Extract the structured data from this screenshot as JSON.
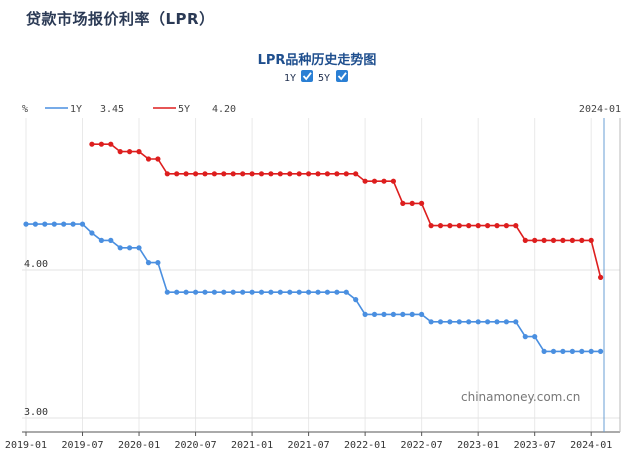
{
  "page": {
    "title": "贷款市场报价利率（LPR）"
  },
  "controls": {
    "toggles": [
      {
        "label": "1Y",
        "checked": true
      },
      {
        "label": "5Y",
        "checked": true
      }
    ],
    "crosshair_label": "2024-01"
  },
  "watermark": "chinamoney.com.cn",
  "colors": {
    "series_1y": "#4a8fe0",
    "series_5y": "#dd1e1e",
    "checkbox": "#2a7fd4"
  },
  "chart_data": {
    "type": "line",
    "title": "LPR品种历史走势图",
    "ylabel": "%",
    "ylim": [
      3.0,
      4.8
    ],
    "yticks": [
      {
        "value": 3.0,
        "label": "3.00"
      },
      {
        "value": 4.0,
        "label": "4.00"
      }
    ],
    "xrange": [
      "2019-01",
      "2024-02"
    ],
    "xticks": [
      "2019-01",
      "2019-07",
      "2020-01",
      "2020-07",
      "2021-01",
      "2021-07",
      "2022-01",
      "2022-07",
      "2023-01",
      "2023-07",
      "2024-01"
    ],
    "legend": [
      {
        "name": "1Y",
        "value": "3.45"
      },
      {
        "name": "5Y",
        "value": "4.20"
      }
    ],
    "series": [
      {
        "name": "1Y",
        "points": [
          [
            "2019-01",
            4.31
          ],
          [
            "2019-02",
            4.31
          ],
          [
            "2019-03",
            4.31
          ],
          [
            "2019-04",
            4.31
          ],
          [
            "2019-05",
            4.31
          ],
          [
            "2019-06",
            4.31
          ],
          [
            "2019-07",
            4.31
          ],
          [
            "2019-08",
            4.25
          ],
          [
            "2019-09",
            4.2
          ],
          [
            "2019-10",
            4.2
          ],
          [
            "2019-11",
            4.15
          ],
          [
            "2019-12",
            4.15
          ],
          [
            "2020-01",
            4.15
          ],
          [
            "2020-02",
            4.05
          ],
          [
            "2020-03",
            4.05
          ],
          [
            "2020-04",
            3.85
          ],
          [
            "2020-05",
            3.85
          ],
          [
            "2020-06",
            3.85
          ],
          [
            "2020-07",
            3.85
          ],
          [
            "2020-08",
            3.85
          ],
          [
            "2020-09",
            3.85
          ],
          [
            "2020-10",
            3.85
          ],
          [
            "2020-11",
            3.85
          ],
          [
            "2020-12",
            3.85
          ],
          [
            "2021-01",
            3.85
          ],
          [
            "2021-02",
            3.85
          ],
          [
            "2021-03",
            3.85
          ],
          [
            "2021-04",
            3.85
          ],
          [
            "2021-05",
            3.85
          ],
          [
            "2021-06",
            3.85
          ],
          [
            "2021-07",
            3.85
          ],
          [
            "2021-08",
            3.85
          ],
          [
            "2021-09",
            3.85
          ],
          [
            "2021-10",
            3.85
          ],
          [
            "2021-11",
            3.85
          ],
          [
            "2021-12",
            3.8
          ],
          [
            "2022-01",
            3.7
          ],
          [
            "2022-02",
            3.7
          ],
          [
            "2022-03",
            3.7
          ],
          [
            "2022-04",
            3.7
          ],
          [
            "2022-05",
            3.7
          ],
          [
            "2022-06",
            3.7
          ],
          [
            "2022-07",
            3.7
          ],
          [
            "2022-08",
            3.65
          ],
          [
            "2022-09",
            3.65
          ],
          [
            "2022-10",
            3.65
          ],
          [
            "2022-11",
            3.65
          ],
          [
            "2022-12",
            3.65
          ],
          [
            "2023-01",
            3.65
          ],
          [
            "2023-02",
            3.65
          ],
          [
            "2023-03",
            3.65
          ],
          [
            "2023-04",
            3.65
          ],
          [
            "2023-05",
            3.65
          ],
          [
            "2023-06",
            3.55
          ],
          [
            "2023-07",
            3.55
          ],
          [
            "2023-08",
            3.45
          ],
          [
            "2023-09",
            3.45
          ],
          [
            "2023-10",
            3.45
          ],
          [
            "2023-11",
            3.45
          ],
          [
            "2023-12",
            3.45
          ],
          [
            "2024-01",
            3.45
          ],
          [
            "2024-02",
            3.45
          ]
        ]
      },
      {
        "name": "5Y",
        "points": [
          [
            "2019-08",
            4.85
          ],
          [
            "2019-09",
            4.85
          ],
          [
            "2019-10",
            4.85
          ],
          [
            "2019-11",
            4.8
          ],
          [
            "2019-12",
            4.8
          ],
          [
            "2020-01",
            4.8
          ],
          [
            "2020-02",
            4.75
          ],
          [
            "2020-03",
            4.75
          ],
          [
            "2020-04",
            4.65
          ],
          [
            "2020-05",
            4.65
          ],
          [
            "2020-06",
            4.65
          ],
          [
            "2020-07",
            4.65
          ],
          [
            "2020-08",
            4.65
          ],
          [
            "2020-09",
            4.65
          ],
          [
            "2020-10",
            4.65
          ],
          [
            "2020-11",
            4.65
          ],
          [
            "2020-12",
            4.65
          ],
          [
            "2021-01",
            4.65
          ],
          [
            "2021-02",
            4.65
          ],
          [
            "2021-03",
            4.65
          ],
          [
            "2021-04",
            4.65
          ],
          [
            "2021-05",
            4.65
          ],
          [
            "2021-06",
            4.65
          ],
          [
            "2021-07",
            4.65
          ],
          [
            "2021-08",
            4.65
          ],
          [
            "2021-09",
            4.65
          ],
          [
            "2021-10",
            4.65
          ],
          [
            "2021-11",
            4.65
          ],
          [
            "2021-12",
            4.65
          ],
          [
            "2022-01",
            4.6
          ],
          [
            "2022-02",
            4.6
          ],
          [
            "2022-03",
            4.6
          ],
          [
            "2022-04",
            4.6
          ],
          [
            "2022-05",
            4.45
          ],
          [
            "2022-06",
            4.45
          ],
          [
            "2022-07",
            4.45
          ],
          [
            "2022-08",
            4.3
          ],
          [
            "2022-09",
            4.3
          ],
          [
            "2022-10",
            4.3
          ],
          [
            "2022-11",
            4.3
          ],
          [
            "2022-12",
            4.3
          ],
          [
            "2023-01",
            4.3
          ],
          [
            "2023-02",
            4.3
          ],
          [
            "2023-03",
            4.3
          ],
          [
            "2023-04",
            4.3
          ],
          [
            "2023-05",
            4.3
          ],
          [
            "2023-06",
            4.2
          ],
          [
            "2023-07",
            4.2
          ],
          [
            "2023-08",
            4.2
          ],
          [
            "2023-09",
            4.2
          ],
          [
            "2023-10",
            4.2
          ],
          [
            "2023-11",
            4.2
          ],
          [
            "2023-12",
            4.2
          ],
          [
            "2024-01",
            4.2
          ],
          [
            "2024-02",
            3.95
          ]
        ]
      }
    ]
  }
}
